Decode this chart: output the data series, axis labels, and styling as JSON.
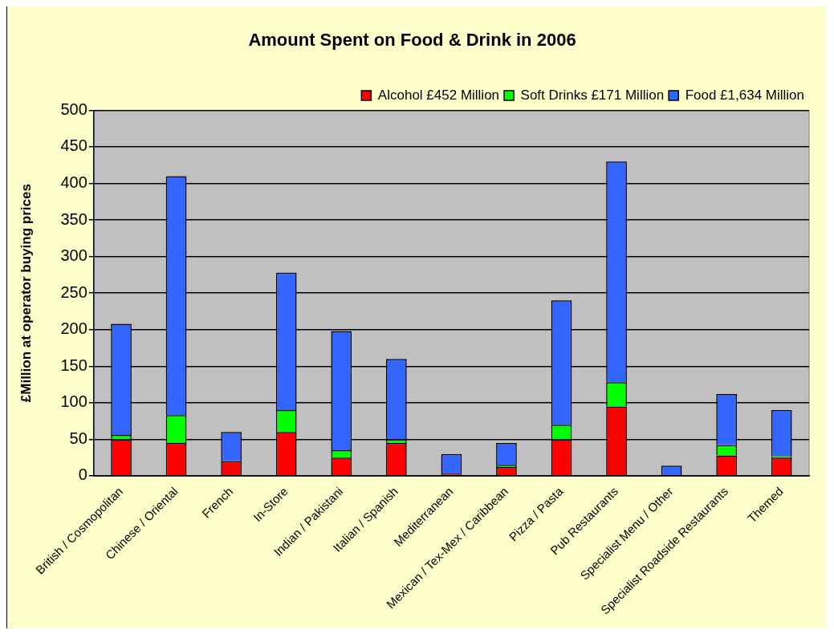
{
  "chart_data": {
    "type": "bar",
    "title": "Amount Spent on Food & Drink in 2006",
    "ylabel": "£Million at operator buying prices",
    "categories": [
      "British / Cosmopolitan",
      "Chinese / Oriental",
      "French",
      "In-Store",
      "Indian / Pakistani",
      "Italian / Spanish",
      "Mediterranean",
      "Mexican / Tex-Mex / Caribbean",
      "Pizza / Pasta",
      "Pub Restaurants",
      "Specialist Menu / Other",
      "Specialist Roadside Restaurants",
      "Themed"
    ],
    "series": [
      {
        "name": "Alcohol £452 Million",
        "color": "#ff0000",
        "values": [
          50,
          45,
          20,
          60,
          25,
          45,
          3,
          12,
          50,
          95,
          0,
          28,
          25
        ]
      },
      {
        "name": "Soft Drinks £171 Million",
        "color": "#00ff00",
        "values": [
          6,
          38,
          0,
          30,
          10,
          5,
          0,
          3,
          20,
          33,
          0,
          14,
          2
        ]
      },
      {
        "name": "Food £1,634 Million",
        "color": "#3366ff",
        "values": [
          152,
          327,
          40,
          188,
          163,
          110,
          27,
          30,
          170,
          302,
          14,
          70,
          63
        ]
      }
    ],
    "stacked": true,
    "ylim": [
      0,
      500
    ],
    "yticks": [
      0,
      50,
      100,
      150,
      200,
      250,
      300,
      350,
      400,
      450,
      500
    ],
    "grid": "y",
    "legend": "top right"
  }
}
